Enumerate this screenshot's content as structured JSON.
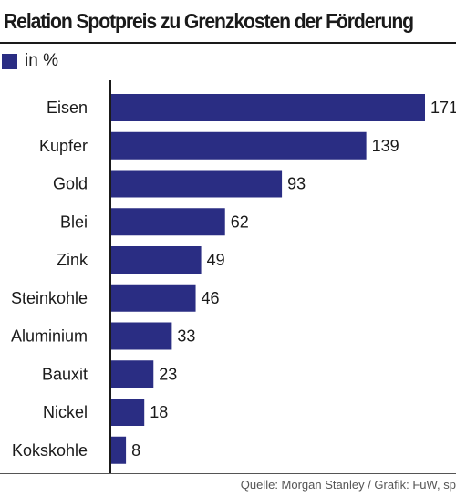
{
  "title": "Relation Spotpreis zu Grenzkosten der Förderung",
  "legend": {
    "label": "in %"
  },
  "source": "Quelle: Morgan Stanley / Grafik: FuW, sp",
  "colors": {
    "bar": "#2a2d83",
    "axis": "#1a1a1a"
  },
  "chart_data": {
    "type": "bar",
    "orientation": "horizontal",
    "title": "Relation Spotpreis zu Grenzkosten der Förderung",
    "categories": [
      "Eisen",
      "Kupfer",
      "Gold",
      "Blei",
      "Zink",
      "Steinkohle",
      "Aluminium",
      "Bauxit",
      "Nickel",
      "Kokskohle"
    ],
    "series": [
      {
        "name": "in %",
        "values": [
          171,
          139,
          93,
          62,
          49,
          46,
          33,
          23,
          18,
          8
        ]
      }
    ],
    "xlim": [
      0,
      171
    ],
    "grid": false,
    "legend_position": "top-left"
  }
}
